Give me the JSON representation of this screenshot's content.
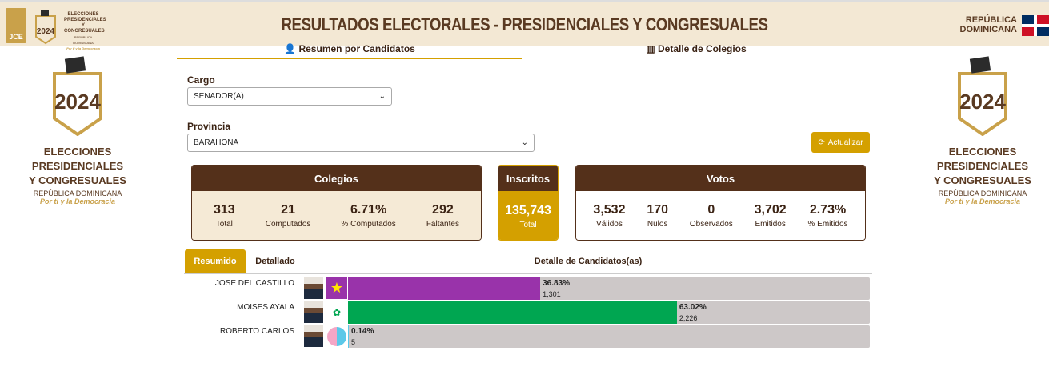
{
  "header": {
    "title": "RESULTADOS ELECTORALES - PRESIDENCIALES Y CONGRESUALES",
    "jce": "JCE",
    "logo_year": "2024",
    "logo_lines": [
      "ELECCIONES",
      "PRESIDENCIALES",
      "Y CONGRESUALES"
    ],
    "logo_country": "REPÚBLICA DOMINICANA",
    "logo_tagline": "Por ti y la Democracia",
    "country": [
      "REPÚBLICA",
      "DOMINICANA"
    ]
  },
  "tabs": [
    {
      "label": "Resumen por Candidatos",
      "icon": "user-icon",
      "active": true
    },
    {
      "label": "Detalle de Colegios",
      "icon": "building-icon",
      "active": false
    }
  ],
  "side_logo": {
    "year": "2024",
    "lines": [
      "ELECCIONES",
      "PRESIDENCIALES",
      "Y CONGRESUALES"
    ],
    "country": "REPÚBLICA DOMINICANA",
    "tagline": "Por ti y la Democracia"
  },
  "filters": {
    "cargo_label": "Cargo",
    "cargo_value": "SENADOR(A)",
    "provincia_label": "Provincia",
    "provincia_value": "BARAHONA",
    "refresh_label": "Actualizar"
  },
  "colegios": {
    "title": "Colegios",
    "stats": [
      {
        "value": "313",
        "label": "Total"
      },
      {
        "value": "21",
        "label": "Computados"
      },
      {
        "value": "6.71%",
        "label": "% Computados"
      },
      {
        "value": "292",
        "label": "Faltantes"
      }
    ]
  },
  "inscritos": {
    "title": "Inscritos",
    "value": "135,743",
    "label": "Total"
  },
  "votos": {
    "title": "Votos",
    "stats": [
      {
        "value": "3,532",
        "label": "Válidos"
      },
      {
        "value": "170",
        "label": "Nulos"
      },
      {
        "value": "0",
        "label": "Observados"
      },
      {
        "value": "3,702",
        "label": "Emitidos"
      },
      {
        "value": "2.73%",
        "label": "% Emitidos"
      }
    ]
  },
  "results": {
    "tabs": [
      "Resumido",
      "Detallado"
    ],
    "title": "Detalle de Candidatos(as)",
    "candidates": [
      {
        "name": "JOSE DEL CASTILLO",
        "percent": "36.83%",
        "share": 36.83,
        "votes": "1,301",
        "color": "#9933aa"
      },
      {
        "name": "MOISES AYALA",
        "percent": "63.02%",
        "share": 63.02,
        "votes": "2,226",
        "color": "#00a651"
      },
      {
        "name": "ROBERTO CARLOS",
        "percent": "0.14%",
        "share": 0.14,
        "votes": "5",
        "color": "#5bc8e8"
      }
    ]
  },
  "colors": {
    "brown": "#54301a",
    "gold": "#d4a000",
    "header_bg": "#f3e8d4"
  }
}
